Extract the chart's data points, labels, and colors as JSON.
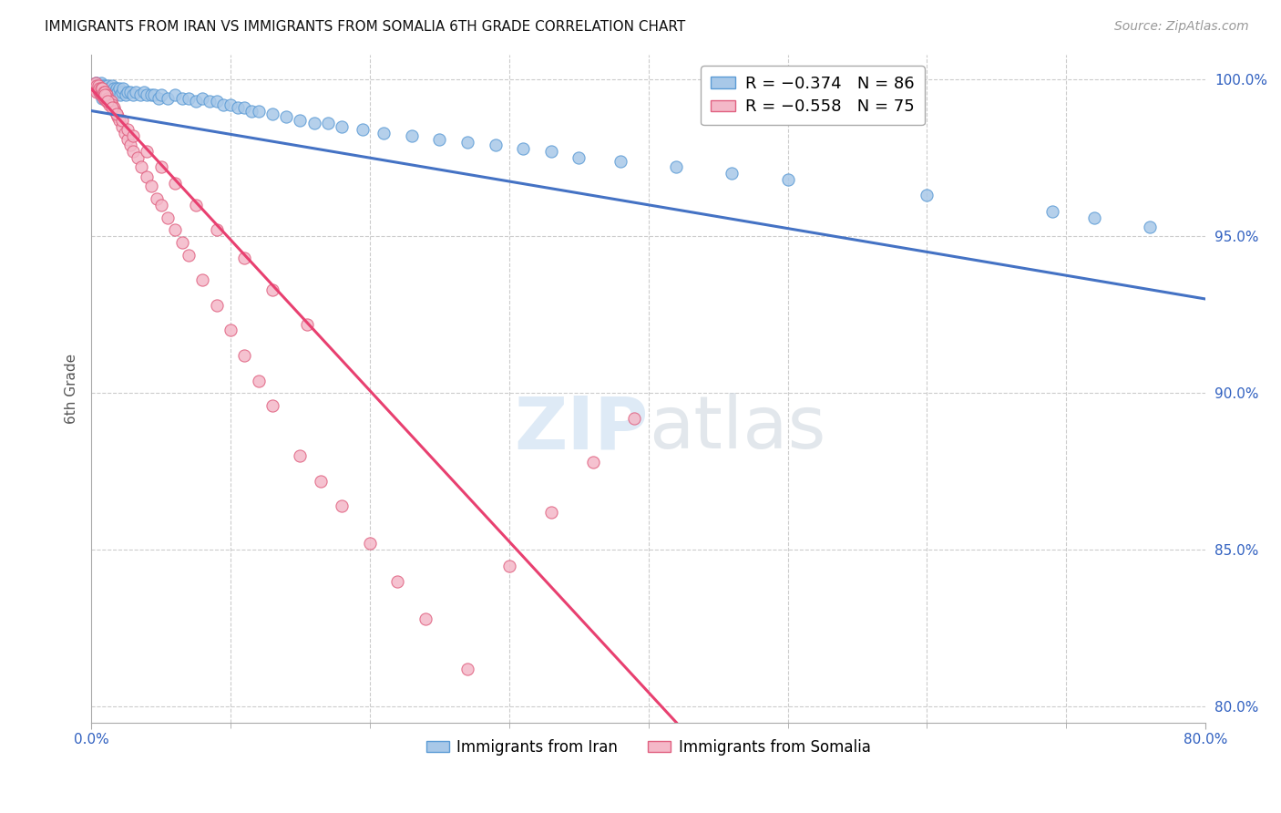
{
  "title": "IMMIGRANTS FROM IRAN VS IMMIGRANTS FROM SOMALIA 6TH GRADE CORRELATION CHART",
  "source": "Source: ZipAtlas.com",
  "ylabel": "6th Grade",
  "x_min": 0.0,
  "x_max": 0.8,
  "y_min": 0.795,
  "y_max": 1.008,
  "y_ticks": [
    0.8,
    0.85,
    0.9,
    0.95,
    1.0
  ],
  "y_tick_labels": [
    "80.0%",
    "85.0%",
    "90.0%",
    "95.0%",
    "100.0%"
  ],
  "iran_color": "#a8c8e8",
  "iran_edge_color": "#5b9bd5",
  "somalia_color": "#f4b8c8",
  "somalia_edge_color": "#e06080",
  "iran_line_color": "#4472c4",
  "somalia_line_color": "#e84070",
  "iran_R": -0.374,
  "iran_N": 86,
  "somalia_R": -0.558,
  "somalia_N": 75,
  "legend_iran_label": "R = −0.374   N = 86",
  "legend_somalia_label": "R = −0.558   N = 75",
  "bottom_legend_iran": "Immigrants from Iran",
  "bottom_legend_somalia": "Immigrants from Somalia",
  "iran_line_x0": 0.0,
  "iran_line_y0": 0.99,
  "iran_line_x1": 0.8,
  "iran_line_y1": 0.93,
  "somalia_line_x0": 0.0,
  "somalia_line_y0": 0.997,
  "somalia_line_x1": 0.42,
  "somalia_line_y1": 0.795,
  "iran_scatter_x": [
    0.002,
    0.003,
    0.004,
    0.004,
    0.005,
    0.005,
    0.006,
    0.006,
    0.007,
    0.007,
    0.007,
    0.008,
    0.008,
    0.008,
    0.009,
    0.009,
    0.01,
    0.01,
    0.01,
    0.011,
    0.011,
    0.012,
    0.012,
    0.013,
    0.013,
    0.014,
    0.015,
    0.015,
    0.016,
    0.016,
    0.017,
    0.018,
    0.019,
    0.02,
    0.021,
    0.022,
    0.023,
    0.025,
    0.026,
    0.028,
    0.03,
    0.032,
    0.035,
    0.038,
    0.04,
    0.043,
    0.045,
    0.048,
    0.05,
    0.055,
    0.06,
    0.065,
    0.07,
    0.075,
    0.08,
    0.085,
    0.09,
    0.095,
    0.1,
    0.105,
    0.11,
    0.115,
    0.12,
    0.13,
    0.14,
    0.15,
    0.16,
    0.17,
    0.18,
    0.195,
    0.21,
    0.23,
    0.25,
    0.27,
    0.29,
    0.31,
    0.33,
    0.35,
    0.38,
    0.42,
    0.46,
    0.5,
    0.6,
    0.69,
    0.72,
    0.76
  ],
  "iran_scatter_y": [
    0.998,
    0.999,
    0.997,
    0.999,
    0.998,
    0.996,
    0.998,
    0.997,
    0.999,
    0.997,
    0.996,
    0.998,
    0.996,
    0.994,
    0.997,
    0.995,
    0.998,
    0.996,
    0.994,
    0.997,
    0.995,
    0.998,
    0.996,
    0.997,
    0.995,
    0.996,
    0.998,
    0.996,
    0.997,
    0.995,
    0.996,
    0.997,
    0.996,
    0.997,
    0.995,
    0.996,
    0.997,
    0.995,
    0.996,
    0.996,
    0.995,
    0.996,
    0.995,
    0.996,
    0.995,
    0.995,
    0.995,
    0.994,
    0.995,
    0.994,
    0.995,
    0.994,
    0.994,
    0.993,
    0.994,
    0.993,
    0.993,
    0.992,
    0.992,
    0.991,
    0.991,
    0.99,
    0.99,
    0.989,
    0.988,
    0.987,
    0.986,
    0.986,
    0.985,
    0.984,
    0.983,
    0.982,
    0.981,
    0.98,
    0.979,
    0.978,
    0.977,
    0.975,
    0.974,
    0.972,
    0.97,
    0.968,
    0.963,
    0.958,
    0.956,
    0.953
  ],
  "somalia_scatter_x": [
    0.002,
    0.003,
    0.003,
    0.004,
    0.004,
    0.005,
    0.005,
    0.006,
    0.006,
    0.007,
    0.007,
    0.008,
    0.008,
    0.009,
    0.009,
    0.01,
    0.01,
    0.011,
    0.011,
    0.012,
    0.013,
    0.014,
    0.015,
    0.016,
    0.017,
    0.018,
    0.019,
    0.02,
    0.022,
    0.024,
    0.026,
    0.028,
    0.03,
    0.033,
    0.036,
    0.04,
    0.043,
    0.047,
    0.05,
    0.055,
    0.06,
    0.065,
    0.07,
    0.08,
    0.09,
    0.1,
    0.11,
    0.12,
    0.13,
    0.15,
    0.165,
    0.18,
    0.2,
    0.22,
    0.24,
    0.27,
    0.3,
    0.33,
    0.36,
    0.39,
    0.01,
    0.012,
    0.015,
    0.018,
    0.022,
    0.026,
    0.03,
    0.04,
    0.05,
    0.06,
    0.075,
    0.09,
    0.11,
    0.13,
    0.155
  ],
  "somalia_scatter_y": [
    0.998,
    0.997,
    0.999,
    0.998,
    0.996,
    0.997,
    0.998,
    0.996,
    0.997,
    0.995,
    0.997,
    0.995,
    0.997,
    0.994,
    0.996,
    0.994,
    0.996,
    0.993,
    0.995,
    0.994,
    0.992,
    0.993,
    0.992,
    0.991,
    0.99,
    0.989,
    0.988,
    0.987,
    0.985,
    0.983,
    0.981,
    0.979,
    0.977,
    0.975,
    0.972,
    0.969,
    0.966,
    0.962,
    0.96,
    0.956,
    0.952,
    0.948,
    0.944,
    0.936,
    0.928,
    0.92,
    0.912,
    0.904,
    0.896,
    0.88,
    0.872,
    0.864,
    0.852,
    0.84,
    0.828,
    0.812,
    0.845,
    0.862,
    0.878,
    0.892,
    0.995,
    0.993,
    0.991,
    0.989,
    0.987,
    0.984,
    0.982,
    0.977,
    0.972,
    0.967,
    0.96,
    0.952,
    0.943,
    0.933,
    0.922
  ]
}
